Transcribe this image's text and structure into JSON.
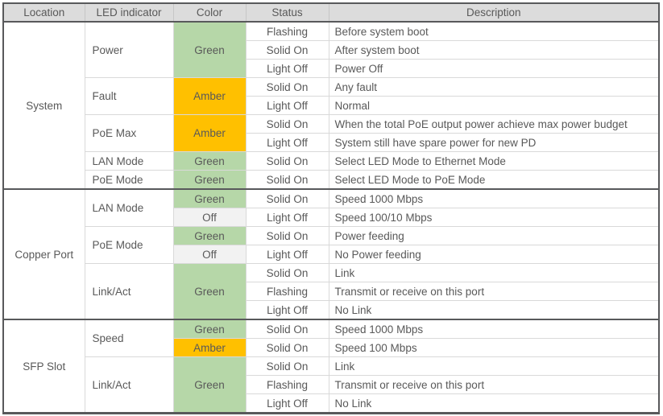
{
  "table": {
    "columns": [
      "Location",
      "LED indicator",
      "Color",
      "Status",
      "Description"
    ],
    "sections": [
      {
        "location": "System",
        "groups": [
          {
            "indicator": "Power",
            "blocks": [
              {
                "color": "Green",
                "tone": "green",
                "rows": [
                  {
                    "status": "Flashing",
                    "description": "Before system boot"
                  },
                  {
                    "status": "Solid On",
                    "description": "After system boot"
                  },
                  {
                    "status": "Light Off",
                    "description": "Power Off"
                  }
                ]
              }
            ]
          },
          {
            "indicator": "Fault",
            "blocks": [
              {
                "color": "Amber",
                "tone": "amber",
                "rows": [
                  {
                    "status": "Solid On",
                    "description": "Any fault"
                  },
                  {
                    "status": "Light Off",
                    "description": "Normal"
                  }
                ]
              }
            ]
          },
          {
            "indicator": "PoE Max",
            "blocks": [
              {
                "color": "Amber",
                "tone": "amber",
                "rows": [
                  {
                    "status": "Solid On",
                    "description": "When the total PoE output power achieve max power budget"
                  },
                  {
                    "status": "Light Off",
                    "description": "System still have spare power for new PD"
                  }
                ]
              }
            ]
          },
          {
            "indicator": "LAN Mode",
            "blocks": [
              {
                "color": "Green",
                "tone": "green",
                "rows": [
                  {
                    "status": "Solid On",
                    "description": "Select LED Mode to Ethernet Mode"
                  }
                ]
              }
            ]
          },
          {
            "indicator": "PoE Mode",
            "blocks": [
              {
                "color": "Green",
                "tone": "green",
                "rows": [
                  {
                    "status": "Solid On",
                    "description": "Select LED Mode to PoE Mode"
                  }
                ]
              }
            ]
          }
        ]
      },
      {
        "location": "Copper Port",
        "groups": [
          {
            "indicator": "LAN Mode",
            "blocks": [
              {
                "color": "Green",
                "tone": "green",
                "rows": [
                  {
                    "status": "Solid On",
                    "description": "Speed 1000 Mbps"
                  }
                ]
              },
              {
                "color": "Off",
                "tone": "off",
                "rows": [
                  {
                    "status": "Light Off",
                    "description": "Speed 100/10 Mbps"
                  }
                ]
              }
            ]
          },
          {
            "indicator": "PoE Mode",
            "blocks": [
              {
                "color": "Green",
                "tone": "green",
                "rows": [
                  {
                    "status": "Solid On",
                    "description": "Power feeding"
                  }
                ]
              },
              {
                "color": "Off",
                "tone": "off",
                "rows": [
                  {
                    "status": "Light Off",
                    "description": "No Power feeding"
                  }
                ]
              }
            ]
          },
          {
            "indicator": "Link/Act",
            "blocks": [
              {
                "color": "Green",
                "tone": "green",
                "rows": [
                  {
                    "status": "Solid On",
                    "description": "Link"
                  },
                  {
                    "status": "Flashing",
                    "description": "Transmit or receive on this port"
                  },
                  {
                    "status": "Light Off",
                    "description": "No Link"
                  }
                ]
              }
            ]
          }
        ]
      },
      {
        "location": "SFP Slot",
        "groups": [
          {
            "indicator": "Speed",
            "blocks": [
              {
                "color": "Green",
                "tone": "green",
                "rows": [
                  {
                    "status": "Solid On",
                    "description": "Speed 1000 Mbps"
                  }
                ]
              },
              {
                "color": "Amber",
                "tone": "amber",
                "rows": [
                  {
                    "status": "Solid On",
                    "description": "Speed 100 Mbps"
                  }
                ]
              }
            ]
          },
          {
            "indicator": "Link/Act",
            "blocks": [
              {
                "color": "Green",
                "tone": "green",
                "rows": [
                  {
                    "status": "Solid On",
                    "description": "Link"
                  },
                  {
                    "status": "Flashing",
                    "description": "Transmit or receive on this port"
                  },
                  {
                    "status": "Light Off",
                    "description": "No Link"
                  }
                ]
              }
            ]
          }
        ]
      }
    ]
  },
  "colors": {
    "green_cell": "#b6d7a8",
    "amber_cell": "#ffc000",
    "off_cell": "#f2f2f2",
    "header_bg": "#dcdcdc",
    "text": "#595959",
    "border_dark": "#58595b",
    "border_light": "#d9d9d9"
  }
}
